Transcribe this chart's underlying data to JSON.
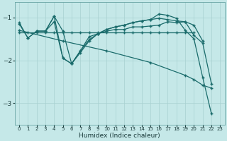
{
  "xlabel": "Humidex (Indice chaleur)",
  "bg_color": "#c5e8e8",
  "grid_color": "#a8d0d0",
  "line_color": "#1a6b6b",
  "xlim": [
    -0.5,
    23.5
  ],
  "ylim": [
    -3.5,
    -0.65
  ],
  "yticks": [
    -3,
    -2,
    -1
  ],
  "xticks": [
    0,
    1,
    2,
    3,
    4,
    5,
    6,
    7,
    8,
    9,
    10,
    11,
    12,
    13,
    14,
    15,
    16,
    17,
    18,
    19,
    20,
    21,
    22,
    23
  ],
  "series": [
    {
      "x": [
        0,
        1,
        2,
        3,
        4,
        5,
        6,
        7,
        8,
        9,
        10,
        11,
        12,
        13,
        14,
        15,
        16,
        17,
        18,
        19,
        20,
        21
      ],
      "y": [
        -1.12,
        -1.48,
        -1.32,
        -1.32,
        -0.97,
        -1.32,
        -2.08,
        -1.78,
        -1.45,
        -1.38,
        -1.32,
        -1.28,
        -1.28,
        -1.22,
        -1.22,
        -1.2,
        -1.18,
        -1.1,
        -1.12,
        -1.1,
        -1.18,
        -1.55
      ]
    },
    {
      "x": [
        0,
        1,
        2,
        3,
        4,
        5,
        6,
        7,
        8,
        9,
        10,
        11,
        12,
        13,
        14,
        15,
        16,
        17,
        18,
        19,
        20
      ],
      "y": [
        -1.35,
        -1.35,
        -1.35,
        -1.35,
        -1.35,
        -1.35,
        -1.35,
        -1.35,
        -1.35,
        -1.35,
        -1.35,
        -1.35,
        -1.35,
        -1.35,
        -1.35,
        -1.35,
        -1.35,
        -1.35,
        -1.35,
        -1.35,
        -1.35
      ]
    },
    {
      "x": [
        2,
        3,
        4,
        5,
        6,
        7,
        8,
        9,
        10,
        11,
        12,
        13,
        14,
        15,
        16,
        17,
        18,
        19,
        20,
        21,
        22
      ],
      "y": [
        -1.32,
        -1.32,
        -0.97,
        -1.95,
        -2.08,
        -1.82,
        -1.55,
        -1.38,
        -1.28,
        -1.22,
        -1.18,
        -1.12,
        -1.08,
        -1.05,
        -1.02,
        -1.05,
        -1.08,
        -1.1,
        -1.42,
        -1.6,
        -2.55
      ]
    },
    {
      "x": [
        0,
        5,
        10,
        15,
        19,
        20,
        21,
        22
      ],
      "y": [
        -1.3,
        -1.55,
        -1.78,
        -2.05,
        -2.35,
        -2.45,
        -2.58,
        -2.65
      ]
    },
    {
      "x": [
        0,
        1,
        2,
        3,
        4,
        5,
        6,
        7,
        8,
        9,
        10,
        11,
        12,
        13,
        14,
        15,
        16,
        17,
        18,
        19,
        20,
        21,
        22
      ],
      "y": [
        -1.15,
        -1.48,
        -1.32,
        -1.32,
        -1.1,
        -1.95,
        -2.08,
        -1.78,
        -1.52,
        -1.38,
        -1.28,
        -1.22,
        -1.18,
        -1.12,
        -1.08,
        -1.05,
        -0.92,
        -0.95,
        -1.02,
        -1.3,
        -1.5,
        -2.4,
        -3.25
      ]
    }
  ]
}
